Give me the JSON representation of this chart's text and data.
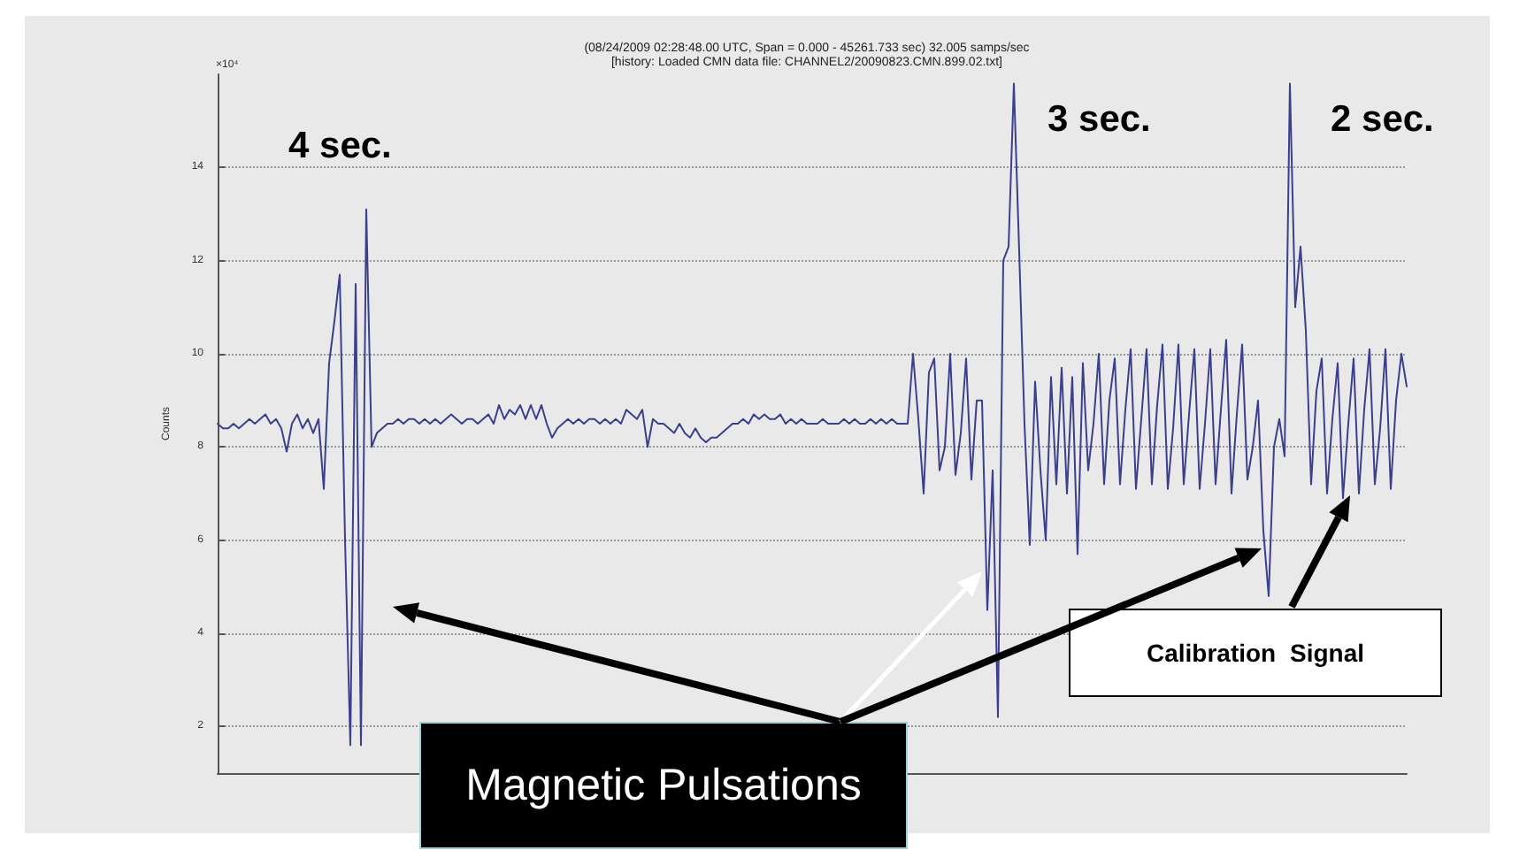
{
  "chart_data": {
    "type": "line",
    "title": "(08/24/2009 02:28:48.00 UTC, Span = 0.000 - 45261.733 sec) 32.005 samps/sec",
    "subtitle": "[history: Loaded CMN data file: CHANNEL2/20090823.CMN.899.02.txt]",
    "ylabel": "Counts",
    "annotations": [
      "×10⁴",
      "4 sec.",
      "3 sec.",
      "2 sec.",
      "Calibration Signal",
      "Magnetic Pulsations"
    ],
    "categories": [
      null,
      null,
      null,
      null,
      null,
      null,
      null,
      null,
      null,
      null,
      null,
      null,
      null,
      null,
      null,
      null,
      null,
      null,
      null,
      null,
      null,
      null,
      null,
      null,
      null,
      null,
      null,
      null,
      null,
      null,
      null,
      null,
      null,
      null,
      null,
      null,
      null,
      null,
      null,
      null,
      null,
      null,
      null,
      null,
      null,
      null,
      null,
      null,
      null,
      null,
      null,
      null,
      null,
      null,
      null,
      null,
      null,
      null,
      null,
      null,
      null,
      null,
      null,
      null,
      null,
      null,
      null,
      null,
      null,
      null,
      null,
      null,
      null,
      null,
      null,
      null,
      null,
      null,
      null,
      null,
      null,
      null,
      null,
      null,
      null,
      null,
      null,
      null,
      null,
      null,
      null,
      null,
      null,
      null,
      null,
      null,
      null,
      null,
      null,
      null,
      null,
      null,
      null,
      null,
      null,
      null,
      null,
      null,
      null,
      null,
      null,
      null,
      null,
      null,
      null,
      null,
      null,
      null,
      null,
      null,
      null,
      null,
      null,
      null,
      null,
      null,
      null,
      null,
      null,
      null,
      null,
      null,
      null,
      null,
      null,
      null,
      null,
      null,
      null,
      null,
      null,
      null,
      null,
      null,
      null,
      null,
      null,
      null,
      null,
      null,
      null,
      null,
      null,
      null,
      null,
      null,
      null,
      null,
      null,
      null,
      null,
      null,
      null,
      null,
      null,
      null,
      null,
      null,
      null,
      null,
      null,
      null,
      null,
      null,
      null,
      null,
      null,
      null,
      null,
      null,
      null,
      null,
      null,
      null,
      null,
      null,
      null,
      null,
      null,
      null,
      null,
      null,
      null,
      null,
      null,
      null,
      null,
      null,
      null,
      null,
      null,
      null,
      null,
      null,
      null,
      null,
      null,
      null,
      null,
      null,
      null,
      null,
      null,
      null,
      null,
      null,
      null,
      null,
      null,
      null,
      null,
      null,
      null,
      null,
      null
    ],
    "series": [
      {
        "color": "#3b3f8c",
        "values": [
          8.5,
          8.4,
          8.4,
          8.5,
          8.4,
          8.5,
          8.6,
          8.5,
          8.6,
          8.7,
          8.5,
          8.6,
          8.4,
          7.9,
          8.5,
          8.7,
          8.4,
          8.6,
          8.3,
          8.6,
          7.1,
          9.8,
          10.7,
          11.7,
          6.0,
          1.6,
          11.5,
          1.6,
          13.1,
          8.0,
          8.3,
          8.4,
          8.5,
          8.5,
          8.6,
          8.5,
          8.6,
          8.6,
          8.5,
          8.6,
          8.5,
          8.6,
          8.5,
          8.6,
          8.7,
          8.6,
          8.5,
          8.6,
          8.6,
          8.5,
          8.6,
          8.7,
          8.5,
          8.9,
          8.6,
          8.8,
          8.7,
          8.9,
          8.6,
          8.9,
          8.6,
          8.9,
          8.5,
          8.2,
          8.4,
          8.5,
          8.6,
          8.5,
          8.6,
          8.5,
          8.6,
          8.6,
          8.5,
          8.6,
          8.5,
          8.6,
          8.5,
          8.8,
          8.7,
          8.6,
          8.8,
          8.0,
          8.6,
          8.5,
          8.5,
          8.4,
          8.3,
          8.5,
          8.3,
          8.2,
          8.4,
          8.2,
          8.1,
          8.2,
          8.2,
          8.3,
          8.4,
          8.5,
          8.5,
          8.6,
          8.5,
          8.7,
          8.6,
          8.7,
          8.6,
          8.6,
          8.7,
          8.5,
          8.6,
          8.5,
          8.6,
          8.5,
          8.5,
          8.5,
          8.6,
          8.5,
          8.5,
          8.5,
          8.6,
          8.5,
          8.6,
          8.5,
          8.5,
          8.6,
          8.5,
          8.6,
          8.5,
          8.6,
          8.5,
          8.5,
          8.5,
          10.0,
          8.6,
          7.0,
          9.6,
          9.9,
          7.5,
          8.0,
          10.0,
          7.4,
          8.3,
          9.9,
          7.3,
          9.0,
          9.0,
          4.5,
          7.5,
          2.2,
          12.0,
          12.3,
          15.8,
          12.2,
          8.5,
          5.9,
          9.4,
          7.5,
          6.0,
          9.5,
          7.2,
          9.7,
          7.0,
          9.5,
          5.7,
          9.8,
          7.5,
          8.5,
          10.0,
          7.2,
          9.0,
          9.9,
          7.2,
          8.8,
          10.1,
          7.1,
          8.6,
          10.1,
          7.2,
          8.9,
          10.2,
          7.1,
          8.4,
          10.2,
          7.2,
          8.7,
          10.1,
          7.1,
          8.5,
          10.1,
          7.2,
          8.8,
          10.3,
          7.0,
          8.7,
          10.2,
          7.3,
          8.0,
          9.0,
          6.2,
          4.8,
          8.0,
          8.6,
          7.8,
          15.8,
          11.0,
          12.3,
          10.5,
          7.2,
          9.2,
          9.9,
          7.0,
          8.6,
          9.8,
          6.9,
          8.5,
          9.9,
          7.0,
          8.8,
          10.1,
          7.2,
          8.4,
          10.1,
          7.1,
          9.0,
          10.0,
          9.3
        ]
      }
    ],
    "ylim": [
      1,
      16
    ],
    "yticks": [
      2,
      4,
      6,
      8,
      10,
      12,
      14
    ],
    "grid": "y",
    "marker": "none",
    "line_style": "solid"
  }
}
